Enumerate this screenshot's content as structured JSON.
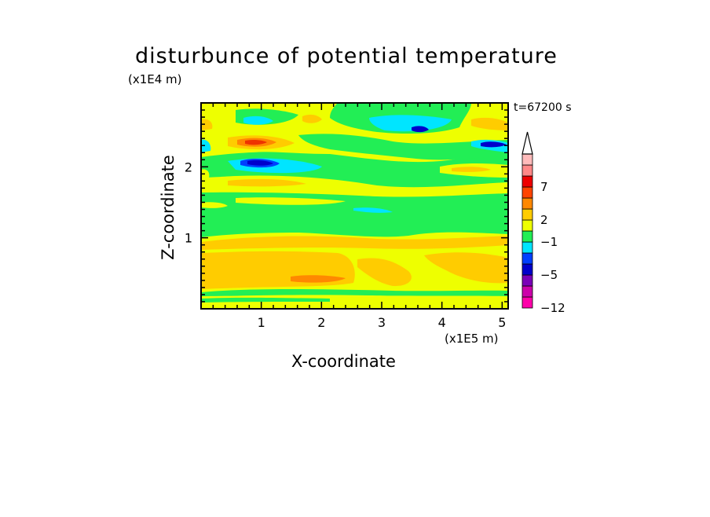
{
  "chart_data": {
    "type": "heatmap",
    "title": "disturbunce of potential temperature",
    "xlabel": "X-coordinate",
    "ylabel": "Z-coordinate",
    "x_unit": "(x1E5 m)",
    "z_unit": "(x1E4 m)",
    "time_label": "t=67200 s",
    "xlim": [
      0,
      5.1
    ],
    "ylim": [
      0,
      2.9
    ],
    "x_ticks": [
      1,
      2,
      3,
      4,
      5
    ],
    "y_ticks": [
      1,
      2
    ],
    "colorbar": {
      "labels": [
        "7",
        "2",
        "−1",
        "−5",
        "−12"
      ],
      "colors": [
        "#ff00aa",
        "#cc00aa",
        "#7a00b8",
        "#0000cc",
        "#0040ff",
        "#00e5ff",
        "#22ee55",
        "#eeff00",
        "#ffcc00",
        "#ff8800",
        "#ff4400",
        "#ee0000",
        "#ff8888",
        "#ffbbbb"
      ]
    },
    "fields": [
      {
        "x": [
          0,
          5.1
        ],
        "z": [
          0.0,
          0.2
        ],
        "level": "yellow"
      },
      {
        "x": [
          0,
          5.1
        ],
        "z": [
          0.2,
          0.27
        ],
        "level": "green"
      },
      {
        "x": [
          0,
          2.5
        ],
        "z": [
          0.27,
          0.85
        ],
        "level": "orange"
      },
      {
        "x": [
          2.5,
          5.1
        ],
        "z": [
          0.27,
          0.85
        ],
        "level": "yellow"
      },
      {
        "x": [
          0,
          5.1
        ],
        "z": [
          0.85,
          1.1
        ],
        "level": "yellow"
      },
      {
        "x": [
          0,
          5.1
        ],
        "z": [
          1.1,
          1.55
        ],
        "level": "green"
      },
      {
        "x": [
          0,
          5.1
        ],
        "z": [
          1.55,
          1.85
        ],
        "level": "yellow"
      },
      {
        "x": [
          0,
          5.1
        ],
        "z": [
          1.85,
          2.35
        ],
        "level": "green"
      },
      {
        "x": [
          0,
          5.1
        ],
        "z": [
          2.35,
          2.9
        ],
        "level": "yellow"
      },
      {
        "x": [
          0.9,
          0.9
        ],
        "z": [
          2.45,
          2.45
        ],
        "level": "red"
      },
      {
        "x": [
          0.85,
          0.85
        ],
        "z": [
          2.1,
          2.1
        ],
        "level": "blue"
      },
      {
        "x": [
          3.65,
          3.65
        ],
        "z": [
          2.6,
          2.6
        ],
        "level": "blue"
      },
      {
        "x": [
          4.95,
          4.95
        ],
        "z": [
          2.35,
          2.35
        ],
        "level": "blue"
      },
      {
        "x": [
          1.9,
          1.9
        ],
        "z": [
          0.35,
          0.35
        ],
        "level": "darkorange"
      }
    ]
  }
}
